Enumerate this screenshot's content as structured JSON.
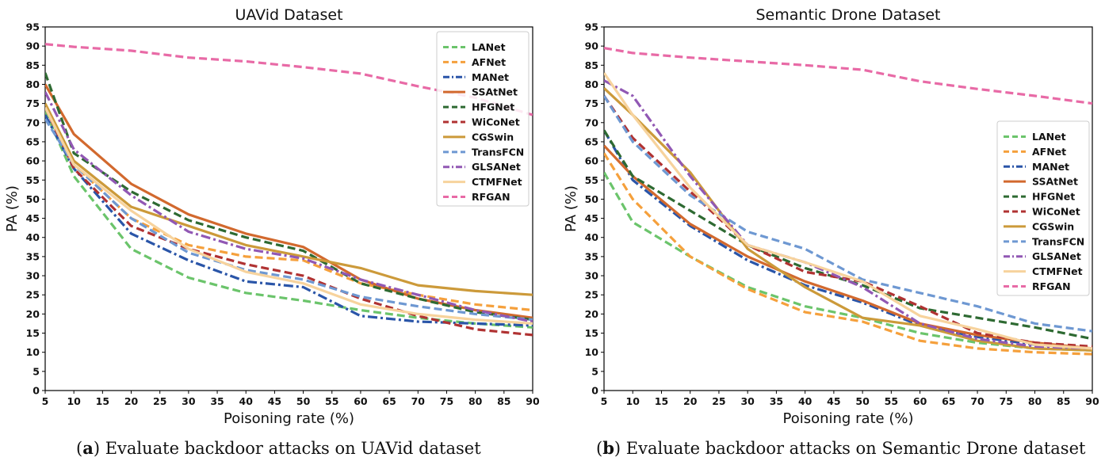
{
  "captions": [
    {
      "label": "a",
      "text": "Evaluate backdoor attacks on UAVid dataset"
    },
    {
      "label": "b",
      "text": "Evaluate backdoor attacks on Semantic Drone dataset"
    }
  ],
  "colors": {
    "LANet": "#6bc46b",
    "AFNet": "#f5a03c",
    "MANet": "#2a55a8",
    "SSAtNet": "#d2692e",
    "HFGNet": "#2e6a32",
    "WiCoNet": "#b03232",
    "CGSwin": "#cc9a3a",
    "TransFCN": "#6e98d2",
    "GLSANet": "#9158b4",
    "CTMFNet": "#f7d39d",
    "RFGAN": "#e86aa6"
  },
  "styles": {
    "LANet": "dash",
    "AFNet": "dash",
    "MANet": "dashdot",
    "SSAtNet": "solid",
    "HFGNet": "dash",
    "WiCoNet": "dash",
    "CGSwin": "solid",
    "TransFCN": "dash",
    "GLSANet": "dashdot",
    "CTMFNet": "solid",
    "RFGAN": "dash"
  },
  "chart_data": [
    {
      "type": "line",
      "title": "UAVid Dataset",
      "xlabel": "Poisoning rate (%)",
      "ylabel": "PA (%)",
      "xlim": [
        5,
        90
      ],
      "ylim": [
        0,
        95
      ],
      "xticks": [
        "5",
        "10",
        "15",
        "20",
        "25",
        "30",
        "35",
        "40",
        "45",
        "50",
        "55",
        "60",
        "65",
        "70",
        "75",
        "80",
        "85",
        "90"
      ],
      "yticks": [
        "0",
        "5",
        "10",
        "15",
        "20",
        "25",
        "30",
        "35",
        "40",
        "45",
        "50",
        "55",
        "60",
        "65",
        "70",
        "75",
        "80",
        "85",
        "90",
        "95"
      ],
      "legend": "top-right",
      "x": [
        5,
        10,
        20,
        30,
        40,
        50,
        60,
        70,
        80,
        90
      ],
      "series": [
        {
          "name": "LANet",
          "values": [
            73,
            56,
            37,
            29.5,
            25.5,
            23.5,
            21,
            19,
            17.5,
            16.5
          ]
        },
        {
          "name": "AFNet",
          "values": [
            74,
            59,
            45,
            38,
            35,
            34,
            28,
            25,
            22.5,
            21
          ]
        },
        {
          "name": "MANet",
          "values": [
            72,
            58,
            41,
            34,
            28.5,
            27,
            19.5,
            18,
            17.5,
            17
          ]
        },
        {
          "name": "SSAtNet",
          "values": [
            80,
            67,
            54,
            46,
            41,
            37.5,
            29,
            24,
            21,
            19
          ]
        },
        {
          "name": "HFGNet",
          "values": [
            83,
            62,
            52,
            44.5,
            40,
            36.5,
            28,
            24,
            20.5,
            18.5
          ]
        },
        {
          "name": "WiCoNet",
          "values": [
            74,
            58,
            43,
            37,
            33,
            30,
            24,
            19.5,
            16,
            14.5
          ]
        },
        {
          "name": "CGSwin",
          "values": [
            75,
            60,
            48,
            43,
            38,
            35,
            32,
            27.5,
            26,
            25
          ]
        },
        {
          "name": "TransFCN",
          "values": [
            71,
            59,
            45,
            36,
            31.5,
            29,
            24.5,
            22,
            20,
            18.5
          ]
        },
        {
          "name": "GLSANet",
          "values": [
            78,
            63,
            51,
            41.5,
            37,
            34.5,
            29,
            25,
            21,
            18
          ]
        },
        {
          "name": "CTMFNet",
          "values": [
            74,
            59,
            47,
            37,
            31,
            28,
            22.5,
            20,
            18.5,
            17.5
          ]
        },
        {
          "name": "RFGAN",
          "values": [
            90.5,
            89.8,
            88.8,
            87,
            86,
            84.5,
            82.8,
            79.5,
            76.5,
            72
          ]
        }
      ]
    },
    {
      "type": "line",
      "title": "Semantic Drone Dataset",
      "xlabel": "Poisoning rate (%)",
      "ylabel": "PA (%)",
      "xlim": [
        5,
        90
      ],
      "ylim": [
        0,
        95
      ],
      "xticks": [
        "5",
        "10",
        "15",
        "20",
        "25",
        "30",
        "35",
        "40",
        "45",
        "50",
        "55",
        "60",
        "65",
        "70",
        "75",
        "80",
        "85",
        "90"
      ],
      "yticks": [
        "0",
        "5",
        "10",
        "15",
        "20",
        "25",
        "30",
        "35",
        "40",
        "45",
        "50",
        "55",
        "60",
        "65",
        "70",
        "75",
        "80",
        "85",
        "90",
        "95"
      ],
      "legend": "center-right",
      "x": [
        5,
        10,
        20,
        30,
        40,
        50,
        60,
        70,
        80,
        90
      ],
      "series": [
        {
          "name": "LANet",
          "values": [
            57,
            44,
            35,
            27,
            22,
            19,
            15,
            12.5,
            11,
            10.5
          ]
        },
        {
          "name": "AFNet",
          "values": [
            62,
            50,
            35,
            26.5,
            20.5,
            18,
            13,
            11,
            10,
            9.5
          ]
        },
        {
          "name": "MANet",
          "values": [
            68,
            55,
            43,
            34,
            27.5,
            23,
            17,
            14,
            12,
            11
          ]
        },
        {
          "name": "SSAtNet",
          "values": [
            64,
            56,
            43.5,
            35,
            28.5,
            23.5,
            17.5,
            14.5,
            12.5,
            11
          ]
        },
        {
          "name": "HFGNet",
          "values": [
            68,
            56,
            47,
            38,
            32,
            27.5,
            21.5,
            19,
            16.5,
            13.5
          ]
        },
        {
          "name": "WiCoNet",
          "values": [
            77,
            66,
            52,
            38,
            31,
            28.5,
            22,
            15,
            12.5,
            11.5
          ]
        },
        {
          "name": "CGSwin",
          "values": [
            79,
            72,
            57,
            37,
            27,
            19,
            17,
            13,
            11,
            10.5
          ]
        },
        {
          "name": "TransFCN",
          "values": [
            77,
            65,
            51,
            41.5,
            37,
            29,
            25.5,
            22,
            17.5,
            15.5
          ]
        },
        {
          "name": "GLSANet",
          "values": [
            81,
            77,
            56,
            38,
            33.5,
            27,
            17.5,
            13.5,
            11.5,
            11
          ]
        },
        {
          "name": "CTMFNet",
          "values": [
            83,
            72,
            53,
            38,
            33.5,
            28.5,
            19.5,
            16,
            12,
            11
          ]
        },
        {
          "name": "RFGAN",
          "values": [
            89.5,
            88.2,
            87,
            86,
            85,
            83.8,
            80.8,
            78.8,
            77,
            75
          ]
        }
      ]
    }
  ]
}
